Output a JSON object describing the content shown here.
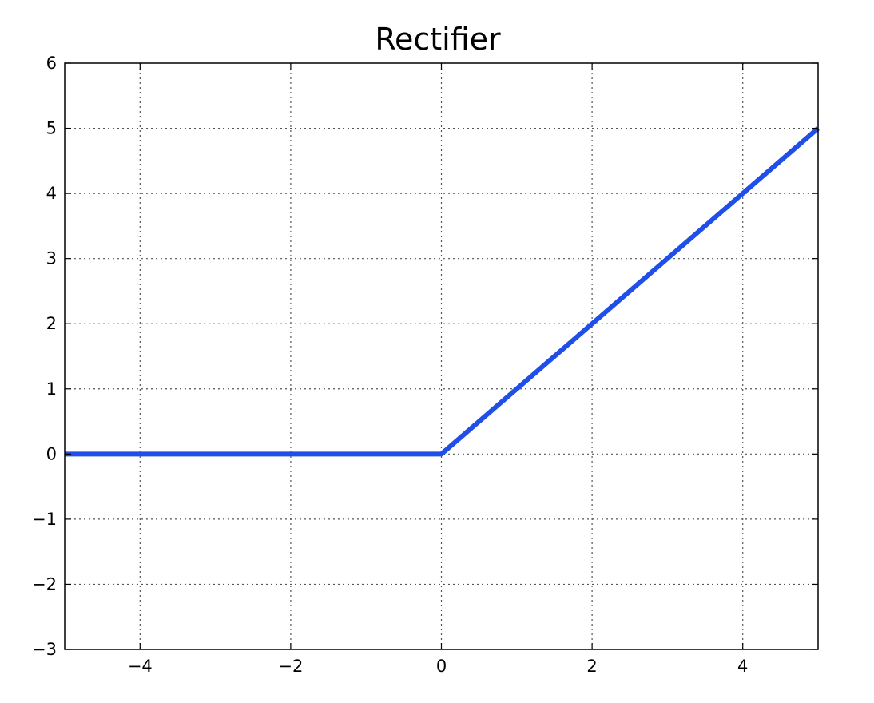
{
  "chart_data": {
    "type": "line",
    "title": "Rectifier",
    "xlabel": "",
    "ylabel": "",
    "xlim": [
      -5,
      5
    ],
    "ylim": [
      -3,
      6
    ],
    "grid": true,
    "x_ticks": [
      -4,
      -2,
      0,
      2,
      4
    ],
    "x_tick_labels": [
      "−4",
      "−2",
      "0",
      "2",
      "4"
    ],
    "y_ticks": [
      -3,
      -2,
      -1,
      0,
      1,
      2,
      3,
      4,
      5,
      6
    ],
    "y_tick_labels": [
      "−3",
      "−2",
      "−1",
      "0",
      "1",
      "2",
      "3",
      "4",
      "5",
      "6"
    ],
    "series": [
      {
        "color": "#1f4fe8",
        "x": [
          -5,
          0,
          5
        ],
        "y": [
          0,
          0,
          5
        ]
      }
    ]
  }
}
